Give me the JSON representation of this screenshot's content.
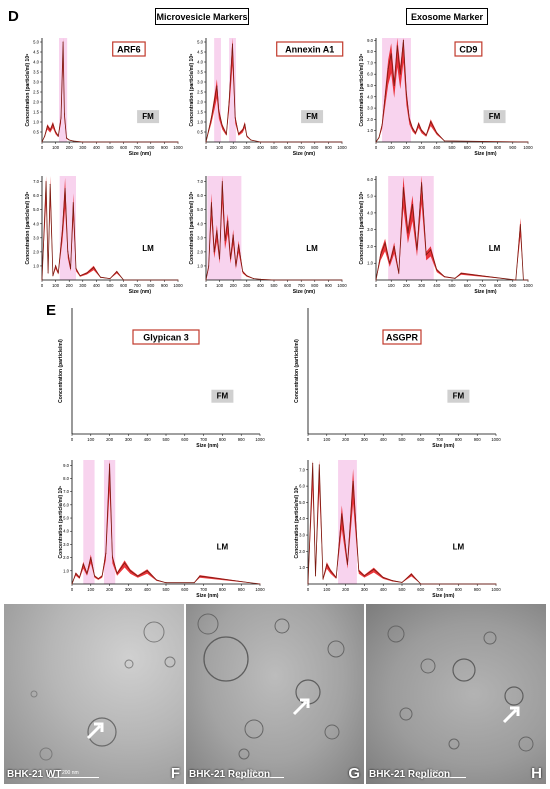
{
  "letters": {
    "d": "D",
    "e": "E",
    "f": "F",
    "g": "G",
    "h": "H"
  },
  "groups": {
    "microvesicle": "Microvesicle Markers",
    "exosome": "Exosome Marker"
  },
  "colors": {
    "trace": "#7a1a10",
    "band": "#e8141a",
    "highlight": "#f6c8ea",
    "label_border": "#c0392b",
    "fm_box": "#d0d0d0",
    "peak_label": "#9b4fd0"
  },
  "tem": [
    {
      "name": "BHK-21 WT",
      "letter": "F",
      "scale": "200 nm"
    },
    {
      "name": "BHK-21 Replicon",
      "letter": "G",
      "scale": "100 nm"
    },
    {
      "name": "BHK-21 Replicon",
      "letter": "H",
      "scale": "200 nm"
    }
  ],
  "chart_data": [
    {
      "id": "arf6_fm",
      "type": "line",
      "title": "ARF6",
      "condition": "FM",
      "ylabel": "Concentration (particle/ml) 10⁸",
      "xlabel": "Size (nm)",
      "xticks": [
        0,
        100,
        200,
        300,
        400,
        500,
        600,
        700,
        800,
        900,
        1000
      ],
      "xlim": [
        0,
        1000
      ],
      "yticks": [
        "0.5",
        "1.0",
        "1.5",
        "2.0",
        "2.5",
        "3.0",
        "3.5",
        "4.0",
        "4.5",
        "5.0"
      ],
      "ylim": [
        0,
        5.2
      ],
      "x": [
        0,
        20,
        40,
        60,
        80,
        100,
        120,
        140,
        155,
        165,
        180,
        200,
        230,
        300,
        400,
        1000
      ],
      "y": [
        0,
        0.3,
        0.8,
        0.6,
        0.9,
        0.5,
        0.3,
        1.2,
        5.0,
        1.4,
        0.2,
        0.1,
        0.05,
        0,
        0,
        0
      ],
      "highlights": [
        [
          125,
          185
        ]
      ],
      "legend": false
    },
    {
      "id": "annexin_fm",
      "type": "line",
      "title": "Annexin A1",
      "condition": "FM",
      "ylabel": "Concentration (particle/ml) 10⁸",
      "xlabel": "Size (nm)",
      "xticks": [
        0,
        100,
        200,
        300,
        400,
        500,
        600,
        700,
        800,
        900,
        1000
      ],
      "xlim": [
        0,
        1000
      ],
      "yticks": [
        "0.5",
        "1.0",
        "1.5",
        "2.0",
        "2.5",
        "3.0",
        "3.5",
        "4.0",
        "4.5",
        "5.0"
      ],
      "ylim": [
        0,
        5.2
      ],
      "x": [
        0,
        20,
        40,
        60,
        80,
        95,
        120,
        150,
        170,
        195,
        215,
        240,
        270,
        285,
        300,
        330,
        400,
        1000
      ],
      "y": [
        0,
        0.6,
        1.2,
        2.0,
        2.8,
        1.5,
        0.8,
        0.4,
        2.0,
        4.9,
        1.2,
        0.4,
        0.6,
        0.9,
        0.3,
        0.1,
        0,
        0
      ],
      "highlights": [
        [
          60,
          110
        ],
        [
          170,
          220
        ]
      ],
      "legend": false
    },
    {
      "id": "cd9_fm",
      "type": "line",
      "title": "CD9",
      "condition": "FM",
      "ylabel": "Concentration (particle/ml) 10⁸",
      "xlabel": "Size (nm)",
      "xticks": [
        0,
        100,
        200,
        300,
        400,
        500,
        600,
        700,
        800,
        900,
        1000
      ],
      "xlim": [
        0,
        1000
      ],
      "yticks": [
        "1.0",
        "2.0",
        "3.0",
        "4.0",
        "5.0",
        "6.0",
        "7.0",
        "8.0",
        "9.0"
      ],
      "ylim": [
        0,
        9.2
      ],
      "x": [
        0,
        20,
        40,
        60,
        80,
        100,
        120,
        140,
        160,
        180,
        200,
        220,
        240,
        260,
        280,
        300,
        330,
        360,
        400,
        450,
        1000
      ],
      "y": [
        0,
        0.4,
        1.5,
        4.0,
        6.5,
        7.8,
        5.0,
        8.5,
        6.0,
        9.0,
        4.2,
        2.0,
        1.2,
        0.8,
        1.6,
        1.0,
        0.6,
        1.8,
        0.8,
        0.1,
        0
      ],
      "highlights": [
        [
          40,
          230
        ]
      ],
      "legend": false
    },
    {
      "id": "arf6_lm",
      "type": "line",
      "title": "",
      "condition": "LM",
      "ylabel": "Concentration (particle/ml) 10⁸",
      "xlabel": "Size (nm)",
      "xticks": [
        0,
        100,
        200,
        300,
        400,
        500,
        600,
        700,
        800,
        900,
        1000
      ],
      "xlim": [
        0,
        1000
      ],
      "yticks": [
        "1.0",
        "2.0",
        "3.0",
        "4.0",
        "5.0",
        "6.0",
        "7.0"
      ],
      "ylim": [
        0,
        7.4
      ],
      "x": [
        0,
        30,
        45,
        60,
        80,
        100,
        120,
        150,
        170,
        190,
        210,
        230,
        250,
        280,
        330,
        380,
        430,
        500,
        550,
        600,
        1000
      ],
      "y": [
        0,
        7.0,
        0.5,
        6.8,
        0.3,
        1.0,
        0.5,
        3.5,
        6.5,
        2.0,
        0.8,
        5.5,
        0.8,
        0.3,
        0.5,
        0.9,
        0.2,
        0.1,
        0.6,
        0,
        0
      ],
      "highlights": [
        [
          130,
          250
        ]
      ],
      "legend": false
    },
    {
      "id": "annexin_lm",
      "type": "line",
      "title": "",
      "condition": "LM",
      "ylabel": "Concentration (particle/ml) 10⁸",
      "xlabel": "Size (nm)",
      "xticks": [
        0,
        100,
        200,
        300,
        400,
        500,
        600,
        700,
        800,
        900,
        1000
      ],
      "xlim": [
        0,
        1000
      ],
      "yticks": [
        "1.0",
        "2.0",
        "3.0",
        "4.0",
        "5.0",
        "6.0",
        "7.0"
      ],
      "ylim": [
        0,
        7.4
      ],
      "x": [
        0,
        20,
        40,
        60,
        80,
        100,
        120,
        140,
        160,
        180,
        200,
        220,
        240,
        270,
        300,
        350,
        400,
        500,
        1000
      ],
      "y": [
        0,
        1.0,
        5.5,
        2.0,
        3.5,
        1.5,
        7.0,
        2.8,
        4.2,
        1.5,
        3.2,
        1.0,
        2.5,
        0.6,
        0.3,
        0.1,
        0.05,
        0,
        0
      ],
      "highlights": [
        [
          10,
          260
        ]
      ],
      "legend": false
    },
    {
      "id": "cd9_lm",
      "type": "line",
      "title": "",
      "condition": "LM",
      "ylabel": "Concentration (particle/ml) 10⁸",
      "xlabel": "Size (nm)",
      "xticks": [
        0,
        100,
        200,
        300,
        400,
        500,
        600,
        700,
        800,
        900,
        1000
      ],
      "xlim": [
        0,
        1000
      ],
      "yticks": [
        "1.0",
        "2.0",
        "3.0",
        "4.0",
        "5.0",
        "6.0"
      ],
      "ylim": [
        0,
        6.2
      ],
      "x": [
        0,
        30,
        60,
        90,
        120,
        150,
        180,
        210,
        240,
        270,
        300,
        330,
        360,
        400,
        450,
        520,
        560,
        920,
        950,
        970,
        1000
      ],
      "y": [
        0,
        1.5,
        2.2,
        1.0,
        2.0,
        0.4,
        5.5,
        2.8,
        4.5,
        1.8,
        5.8,
        1.5,
        1.8,
        0.6,
        0.2,
        0.1,
        0.4,
        0,
        3.3,
        0,
        0
      ],
      "highlights": [
        [
          80,
          380
        ]
      ],
      "legend": false
    },
    {
      "id": "glypican_fm",
      "type": "line",
      "title": "Glypican 3",
      "condition": "FM",
      "ylabel": "Concentration (particle/ml)",
      "xlabel": "Size (nm)",
      "xticks": [
        0,
        100,
        200,
        300,
        400,
        500,
        600,
        700,
        800,
        900,
        1000
      ],
      "xlim": [
        0,
        1000
      ],
      "yticks": [],
      "ylim": [
        0,
        1
      ],
      "x": [],
      "y": [],
      "highlights": [],
      "legend": false
    },
    {
      "id": "asgpr_fm",
      "type": "line",
      "title": "ASGPR",
      "condition": "FM",
      "ylabel": "Concentration (particle/ml)",
      "xlabel": "Size (nm)",
      "xticks": [
        0,
        100,
        200,
        300,
        400,
        500,
        600,
        700,
        800,
        900,
        1000
      ],
      "xlim": [
        0,
        1000
      ],
      "yticks": [],
      "ylim": [
        0,
        1
      ],
      "x": [],
      "y": [],
      "highlights": [],
      "legend": false
    },
    {
      "id": "glypican_lm",
      "type": "line",
      "title": "",
      "condition": "LM",
      "ylabel": "Concentration (particle/ml) 10⁵",
      "xlabel": "Size (nm)",
      "xticks": [
        0,
        100,
        200,
        300,
        400,
        500,
        600,
        700,
        800,
        900,
        1000
      ],
      "xlim": [
        0,
        1000
      ],
      "yticks": [
        "1.0",
        "2.0",
        "3.0",
        "4.0",
        "5.0",
        "6.0",
        "7.0",
        "8.0",
        "9.0"
      ],
      "ylim": [
        0,
        9.4
      ],
      "x": [
        0,
        20,
        40,
        60,
        80,
        100,
        120,
        140,
        160,
        180,
        200,
        215,
        240,
        280,
        310,
        350,
        400,
        450,
        500,
        650,
        680,
        1000
      ],
      "y": [
        0,
        0.8,
        0.5,
        1.5,
        0.8,
        2.0,
        0.6,
        0.4,
        0.6,
        2.3,
        9.1,
        2.0,
        0.8,
        1.6,
        1.0,
        0.6,
        1.0,
        0.3,
        0.1,
        0.1,
        0.6,
        0
      ],
      "highlights": [
        [
          170,
          230
        ],
        [
          60,
          120
        ]
      ],
      "legend": false
    },
    {
      "id": "asgpr_lm",
      "type": "line",
      "title": "",
      "condition": "LM",
      "ylabel": "Concentration (particle/ml) 10⁶",
      "xlabel": "Size (nm)",
      "xticks": [
        0,
        100,
        200,
        300,
        400,
        500,
        600,
        700,
        800,
        900,
        1000
      ],
      "xlim": [
        0,
        1000
      ],
      "yticks": [
        "1.0",
        "2.0",
        "3.0",
        "4.0",
        "5.0",
        "6.0",
        "7.0"
      ],
      "ylim": [
        0,
        7.6
      ],
      "x": [
        0,
        25,
        40,
        60,
        80,
        100,
        120,
        150,
        180,
        210,
        240,
        270,
        300,
        350,
        400,
        450,
        500,
        550,
        600,
        1000
      ],
      "y": [
        0,
        7.4,
        0.5,
        7.3,
        0.3,
        1.2,
        0.8,
        0.4,
        4.3,
        1.2,
        6.3,
        0.8,
        0.5,
        0.9,
        0.4,
        0.2,
        0.1,
        0.6,
        0,
        0
      ],
      "highlights": [
        [
          160,
          260
        ]
      ],
      "legend": false
    }
  ]
}
